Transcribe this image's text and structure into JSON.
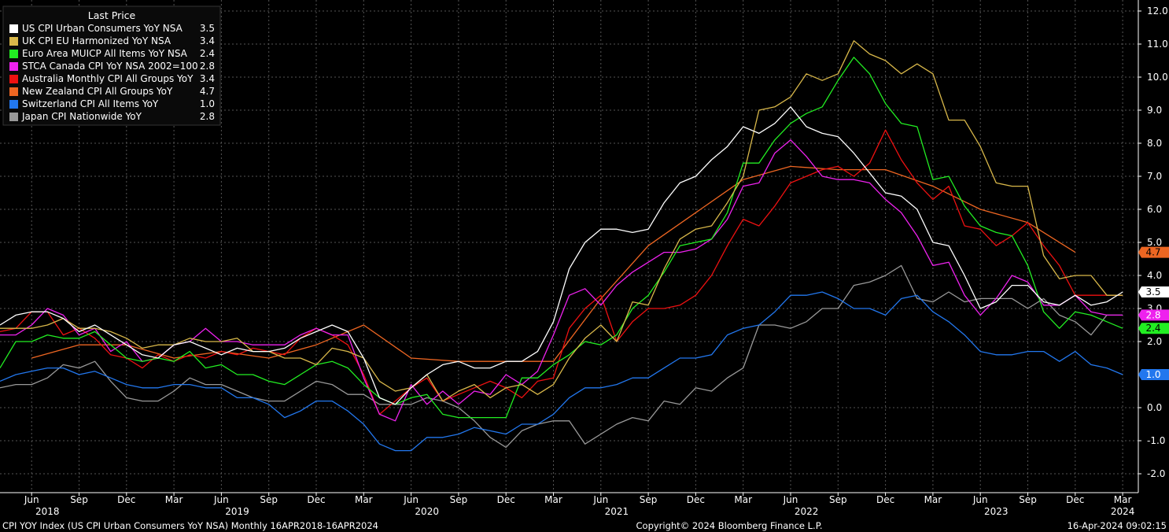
{
  "legend": {
    "header": "Last Price",
    "items": [
      {
        "label": "US CPI Urban Consumers YoY NSA",
        "value": "3.5",
        "color": "#ffffff"
      },
      {
        "label": "UK CPI EU Harmonized YoY NSA",
        "value": "3.4",
        "color": "#d9b84a"
      },
      {
        "label": "Euro Area MUICP All Items YoY NSA",
        "value": "2.4",
        "color": "#22ee22"
      },
      {
        "label": "STCA Canada CPI YoY NSA 2002=100",
        "value": "2.8",
        "color": "#ee22ee"
      },
      {
        "label": "Australia Monthly CPI All Groups YoY",
        "value": "3.4",
        "color": "#ee1111"
      },
      {
        "label": "New Zealand CPI All Groups YoY",
        "value": "4.7",
        "color": "#ee6622"
      },
      {
        "label": "Switzerland CPI All Items YoY",
        "value": "1.0",
        "color": "#2277ee"
      },
      {
        "label": "Japan CPI Nationwide YoY",
        "value": "2.8",
        "color": "#999999"
      }
    ]
  },
  "footer": {
    "left": "CPI YOY Index (US CPI Urban Consumers YoY NSA)  Monthly 16APR2018-16APR2024",
    "center": "Copyright© 2024 Bloomberg Finance L.P.",
    "right": "16-Apr-2024 09:02:15"
  },
  "chart_data": {
    "type": "line",
    "start_month": "2018-04",
    "ylim": [
      -2.4,
      12.3
    ],
    "yticks": [
      "12.0",
      "11.0",
      "10.0",
      "9.0",
      "8.0",
      "7.0",
      "6.0",
      "5.0",
      "4.0",
      "3.0",
      "2.0",
      "0.0",
      "-1.0",
      "-2.0"
    ],
    "x_month_ticks": [
      {
        "label": "Jun",
        "month": "2018-06"
      },
      {
        "label": "Sep",
        "month": "2018-09"
      },
      {
        "label": "Dec",
        "month": "2018-12"
      },
      {
        "label": "Mar",
        "month": "2019-03"
      },
      {
        "label": "Jun",
        "month": "2019-06"
      },
      {
        "label": "Sep",
        "month": "2019-09"
      },
      {
        "label": "Dec",
        "month": "2019-12"
      },
      {
        "label": "Mar",
        "month": "2020-03"
      },
      {
        "label": "Jun",
        "month": "2020-06"
      },
      {
        "label": "Sep",
        "month": "2020-09"
      },
      {
        "label": "Dec",
        "month": "2020-12"
      },
      {
        "label": "Mar",
        "month": "2021-03"
      },
      {
        "label": "Jun",
        "month": "2021-06"
      },
      {
        "label": "Sep",
        "month": "2021-09"
      },
      {
        "label": "Dec",
        "month": "2021-12"
      },
      {
        "label": "Mar",
        "month": "2022-03"
      },
      {
        "label": "Jun",
        "month": "2022-06"
      },
      {
        "label": "Sep",
        "month": "2022-09"
      },
      {
        "label": "Dec",
        "month": "2022-12"
      },
      {
        "label": "Mar",
        "month": "2023-03"
      },
      {
        "label": "Jun",
        "month": "2023-06"
      },
      {
        "label": "Sep",
        "month": "2023-09"
      },
      {
        "label": "Dec",
        "month": "2023-12"
      },
      {
        "label": "Mar",
        "month": "2024-03"
      }
    ],
    "x_year_labels": [
      {
        "label": "2018",
        "month": "2018-07"
      },
      {
        "label": "2019",
        "month": "2019-07"
      },
      {
        "label": "2020",
        "month": "2020-07"
      },
      {
        "label": "2021",
        "month": "2021-07"
      },
      {
        "label": "2022",
        "month": "2022-07"
      },
      {
        "label": "2023",
        "month": "2023-07"
      },
      {
        "label": "2024",
        "month": "2024-03"
      }
    ],
    "right_badges": [
      {
        "value": "4.7",
        "y": 4.7,
        "color": "#ee6622",
        "text_color": "#000000"
      },
      {
        "value": "3.5",
        "y": 3.5,
        "color": "#ffffff",
        "text_color": "#000000"
      },
      {
        "value": "2.8",
        "y": 2.8,
        "color": "#ee22ee",
        "text_color": "#ffffff"
      },
      {
        "value": "2.4",
        "y": 2.4,
        "color": "#22ee22",
        "text_color": "#000000"
      },
      {
        "value": "1.0",
        "y": 1.0,
        "color": "#2277ee",
        "text_color": "#ffffff"
      }
    ],
    "series": [
      {
        "name": "US CPI Urban Consumers YoY NSA",
        "color": "#ffffff",
        "start": "2018-04",
        "values": [
          2.5,
          2.8,
          2.9,
          2.9,
          2.7,
          2.3,
          2.5,
          2.2,
          1.9,
          1.6,
          1.5,
          1.9,
          2.0,
          1.8,
          1.6,
          1.8,
          1.7,
          1.7,
          1.8,
          2.1,
          2.3,
          2.5,
          2.3,
          1.5,
          0.3,
          0.1,
          0.6,
          1.0,
          1.3,
          1.4,
          1.2,
          1.2,
          1.4,
          1.4,
          1.7,
          2.6,
          4.2,
          5.0,
          5.4,
          5.4,
          5.3,
          5.4,
          6.2,
          6.8,
          7.0,
          7.5,
          7.9,
          8.5,
          8.3,
          8.6,
          9.1,
          8.5,
          8.3,
          8.2,
          7.7,
          7.1,
          6.5,
          6.4,
          6.0,
          5.0,
          4.9,
          4.0,
          3.0,
          3.2,
          3.7,
          3.7,
          3.2,
          3.1,
          3.4,
          3.1,
          3.2,
          3.5
        ]
      },
      {
        "name": "UK CPI EU Harmonized YoY NSA",
        "color": "#d9b84a",
        "start": "2018-04",
        "values": [
          2.4,
          2.4,
          2.4,
          2.5,
          2.7,
          2.4,
          2.4,
          2.3,
          2.1,
          1.8,
          1.9,
          1.9,
          2.1,
          2.0,
          2.0,
          2.1,
          1.7,
          1.7,
          1.5,
          1.5,
          1.3,
          1.8,
          1.7,
          1.5,
          0.8,
          0.5,
          0.6,
          1.0,
          0.2,
          0.5,
          0.7,
          0.3,
          0.6,
          0.7,
          0.4,
          0.7,
          1.5,
          2.1,
          2.5,
          2.0,
          3.2,
          3.1,
          4.2,
          5.1,
          5.4,
          5.5,
          6.2,
          7.0,
          9.0,
          9.1,
          9.4,
          10.1,
          9.9,
          10.1,
          11.1,
          10.7,
          10.5,
          10.1,
          10.4,
          10.1,
          8.7,
          8.7,
          7.9,
          6.8,
          6.7,
          6.7,
          4.6,
          3.9,
          4.0,
          4.0,
          3.4,
          3.4
        ]
      },
      {
        "name": "Euro Area MUICP All Items YoY NSA",
        "color": "#22ee22",
        "start": "2018-04",
        "values": [
          1.2,
          2.0,
          2.0,
          2.2,
          2.1,
          2.1,
          2.3,
          1.9,
          1.5,
          1.4,
          1.5,
          1.4,
          1.7,
          1.2,
          1.3,
          1.0,
          1.0,
          0.8,
          0.7,
          1.0,
          1.3,
          1.4,
          1.2,
          0.7,
          0.3,
          0.1,
          0.3,
          0.4,
          -0.2,
          -0.3,
          -0.3,
          -0.3,
          -0.3,
          0.9,
          0.9,
          1.3,
          1.6,
          2.0,
          1.9,
          2.2,
          3.0,
          3.4,
          4.1,
          4.9,
          5.0,
          5.1,
          5.9,
          7.4,
          7.4,
          8.1,
          8.6,
          8.9,
          9.1,
          9.9,
          10.6,
          10.1,
          9.2,
          8.6,
          8.5,
          6.9,
          7.0,
          6.1,
          5.5,
          5.3,
          5.2,
          4.3,
          2.9,
          2.4,
          2.9,
          2.8,
          2.6,
          2.4
        ]
      },
      {
        "name": "STCA Canada CPI YoY NSA 2002=100",
        "color": "#ee22ee",
        "start": "2018-04",
        "values": [
          2.2,
          2.2,
          2.5,
          3.0,
          2.8,
          2.2,
          2.4,
          1.7,
          2.0,
          1.4,
          1.5,
          1.9,
          2.0,
          2.4,
          2.0,
          2.0,
          1.9,
          1.9,
          1.9,
          2.2,
          2.4,
          2.2,
          2.2,
          0.9,
          -0.2,
          -0.4,
          0.7,
          0.1,
          0.5,
          0.1,
          0.5,
          0.4,
          1.0,
          0.7,
          1.1,
          2.2,
          3.4,
          3.6,
          3.1,
          3.7,
          4.1,
          4.4,
          4.7,
          4.7,
          4.8,
          5.1,
          5.7,
          6.7,
          6.8,
          7.7,
          8.1,
          7.6,
          7.0,
          6.9,
          6.9,
          6.8,
          6.3,
          5.9,
          5.2,
          4.3,
          4.4,
          3.4,
          2.8,
          3.3,
          4.0,
          3.8,
          3.1,
          3.1,
          3.4,
          2.9,
          2.8,
          2.8
        ]
      },
      {
        "name": "Australia Monthly CPI All Groups YoY",
        "color": "#ee1111",
        "start": "2018-04",
        "values": [
          2.3,
          2.4,
          2.9,
          2.9,
          2.2,
          2.4,
          2.1,
          1.6,
          1.5,
          1.2,
          1.6,
          1.4,
          1.6,
          1.5,
          1.7,
          1.6,
          1.8,
          1.7,
          1.6,
          2.1,
          2.4,
          2.2,
          1.9,
          1.0,
          -0.2,
          0.2,
          0.6,
          0.9,
          0.2,
          0.4,
          0.6,
          0.8,
          0.6,
          0.3,
          0.8,
          0.9,
          2.4,
          3.0,
          3.4,
          2.0,
          2.6,
          3.0,
          3.0,
          3.1,
          3.4,
          4.0,
          4.9,
          5.7,
          5.5,
          6.1,
          6.8,
          7.0,
          7.2,
          7.3,
          7.0,
          7.4,
          8.4,
          7.5,
          6.8,
          6.3,
          6.7,
          5.5,
          5.4,
          4.9,
          5.2,
          5.6,
          4.9,
          4.3,
          3.4,
          3.4,
          3.4,
          3.4
        ]
      },
      {
        "name": "New Zealand CPI All Groups YoY",
        "color": "#ee6622",
        "start": "2018-06",
        "step": 3,
        "values": [
          1.5,
          1.9,
          1.9,
          1.5,
          1.7,
          1.5,
          1.9,
          2.5,
          1.5,
          1.4,
          1.4,
          1.4,
          3.3,
          4.9,
          5.9,
          6.9,
          7.3,
          7.2,
          7.2,
          6.7,
          6.0,
          5.6,
          4.7
        ]
      },
      {
        "name": "Switzerland CPI All Items YoY",
        "color": "#2277ee",
        "start": "2018-04",
        "values": [
          0.8,
          1.0,
          1.1,
          1.2,
          1.2,
          1.0,
          1.1,
          0.9,
          0.7,
          0.6,
          0.6,
          0.7,
          0.7,
          0.6,
          0.6,
          0.3,
          0.3,
          0.1,
          -0.3,
          -0.1,
          0.2,
          0.2,
          -0.1,
          -0.5,
          -1.1,
          -1.3,
          -1.3,
          -0.9,
          -0.9,
          -0.8,
          -0.6,
          -0.7,
          -0.8,
          -0.5,
          -0.5,
          -0.2,
          0.3,
          0.6,
          0.6,
          0.7,
          0.9,
          0.9,
          1.2,
          1.5,
          1.5,
          1.6,
          2.2,
          2.4,
          2.5,
          2.9,
          3.4,
          3.4,
          3.5,
          3.3,
          3.0,
          3.0,
          2.8,
          3.3,
          3.4,
          2.9,
          2.6,
          2.2,
          1.7,
          1.6,
          1.6,
          1.7,
          1.7,
          1.4,
          1.7,
          1.3,
          1.2,
          1.0
        ]
      },
      {
        "name": "Japan CPI Nationwide YoY",
        "color": "#999999",
        "start": "2018-04",
        "values": [
          0.6,
          0.7,
          0.7,
          0.9,
          1.3,
          1.2,
          1.4,
          0.8,
          0.3,
          0.2,
          0.2,
          0.5,
          0.9,
          0.7,
          0.7,
          0.5,
          0.3,
          0.2,
          0.2,
          0.5,
          0.8,
          0.7,
          0.4,
          0.4,
          0.1,
          0.1,
          0.1,
          0.3,
          0.2,
          0.0,
          -0.4,
          -0.9,
          -1.2,
          -0.7,
          -0.5,
          -0.4,
          -0.4,
          -1.1,
          -0.8,
          -0.5,
          -0.3,
          -0.4,
          0.2,
          0.1,
          0.6,
          0.5,
          0.9,
          1.2,
          2.5,
          2.5,
          2.4,
          2.6,
          3.0,
          3.0,
          3.7,
          3.8,
          4.0,
          4.3,
          3.3,
          3.2,
          3.5,
          3.2,
          3.3,
          3.3,
          3.3,
          3.0,
          3.3,
          2.8,
          2.6,
          2.2,
          2.8,
          2.8
        ]
      }
    ]
  }
}
